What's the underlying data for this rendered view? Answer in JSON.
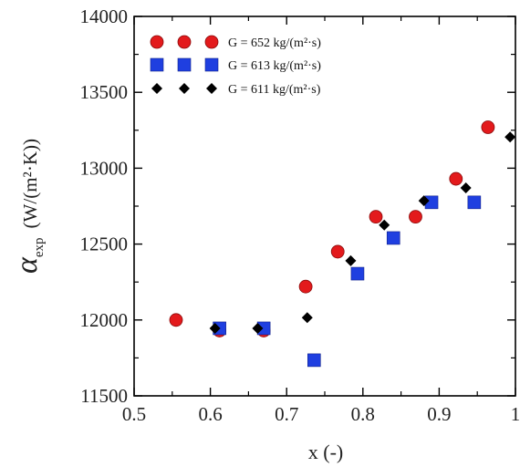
{
  "chart_data": {
    "type": "scatter",
    "title": "",
    "xlabel": "x (-)",
    "ylabel": {
      "symbol": "α",
      "subscript": "exp",
      "unit": "(W/(m²·K))"
    },
    "xlim": [
      0.5,
      1.0
    ],
    "ylim": [
      11500,
      14000
    ],
    "xticks": [
      0.5,
      0.6,
      0.7,
      0.8,
      0.9,
      1.0
    ],
    "xtick_labels": [
      "0.5",
      "0.6",
      "0.7",
      "0.8",
      "0.9",
      "1"
    ],
    "yticks": [
      11500,
      12000,
      12500,
      13000,
      13500,
      14000
    ],
    "ytick_labels": [
      "11500",
      "12000",
      "12500",
      "13000",
      "13500",
      "14000"
    ],
    "grid": false,
    "legend_position": "top-left",
    "series": [
      {
        "name": "G = 652 kg/(m²·s)",
        "marker": "circle",
        "color": "#e31a1c",
        "x": [
          0.555,
          0.612,
          0.67,
          0.725,
          0.767,
          0.817,
          0.869,
          0.922,
          0.964
        ],
        "y": [
          12000,
          11930,
          11930,
          12220,
          12450,
          12680,
          12680,
          12930,
          13270
        ]
      },
      {
        "name": "G = 613 kg/(m²·s)",
        "marker": "square",
        "color": "#1f3fe0",
        "x": [
          0.612,
          0.67,
          0.736,
          0.793,
          0.84,
          0.89,
          0.946
        ],
        "y": [
          11945,
          11945,
          11735,
          12305,
          12540,
          12775,
          12775
        ]
      },
      {
        "name": "G = 611 kg/(m²·s)",
        "marker": "diamond",
        "color": "#000000",
        "x": [
          0.606,
          0.662,
          0.727,
          0.784,
          0.828,
          0.88,
          0.935,
          0.993
        ],
        "y": [
          11945,
          11945,
          12015,
          12390,
          12625,
          12785,
          12870,
          13205
        ]
      }
    ]
  }
}
